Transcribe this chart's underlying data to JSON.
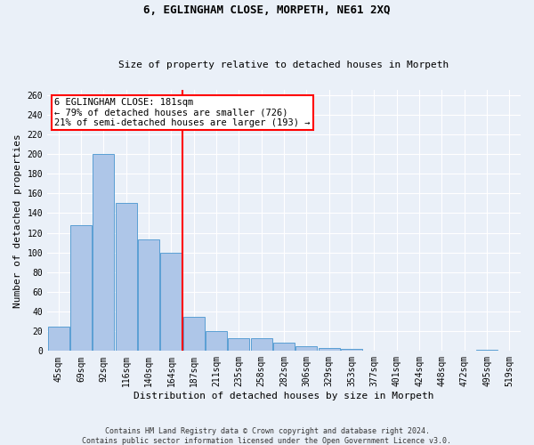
{
  "title1": "6, EGLINGHAM CLOSE, MORPETH, NE61 2XQ",
  "title2": "Size of property relative to detached houses in Morpeth",
  "xlabel": "Distribution of detached houses by size in Morpeth",
  "ylabel": "Number of detached properties",
  "footer1": "Contains HM Land Registry data © Crown copyright and database right 2024.",
  "footer2": "Contains public sector information licensed under the Open Government Licence v3.0.",
  "categories": [
    "45sqm",
    "69sqm",
    "92sqm",
    "116sqm",
    "140sqm",
    "164sqm",
    "187sqm",
    "211sqm",
    "235sqm",
    "258sqm",
    "282sqm",
    "306sqm",
    "329sqm",
    "353sqm",
    "377sqm",
    "401sqm",
    "424sqm",
    "448sqm",
    "472sqm",
    "495sqm",
    "519sqm"
  ],
  "values": [
    25,
    128,
    200,
    150,
    113,
    100,
    35,
    20,
    13,
    13,
    8,
    5,
    3,
    2,
    0,
    0,
    0,
    0,
    0,
    1,
    0
  ],
  "bar_color": "#aec6e8",
  "bar_edge_color": "#5a9fd4",
  "vline_color": "red",
  "vline_index": 6,
  "annotation_line0": "6 EGLINGHAM CLOSE: 181sqm",
  "annotation_line1": "← 79% of detached houses are smaller (726)",
  "annotation_line2": "21% of semi-detached houses are larger (193) →",
  "annotation_box_color": "white",
  "annotation_box_edge": "red",
  "ylim": [
    0,
    265
  ],
  "yticks": [
    0,
    20,
    40,
    60,
    80,
    100,
    120,
    140,
    160,
    180,
    200,
    220,
    240,
    260
  ],
  "background_color": "#eaf0f8",
  "grid_color": "white",
  "title1_fontsize": 9,
  "title2_fontsize": 8,
  "ylabel_fontsize": 8,
  "xlabel_fontsize": 8,
  "tick_fontsize": 7,
  "footer_fontsize": 6,
  "annot_fontsize": 7.5
}
